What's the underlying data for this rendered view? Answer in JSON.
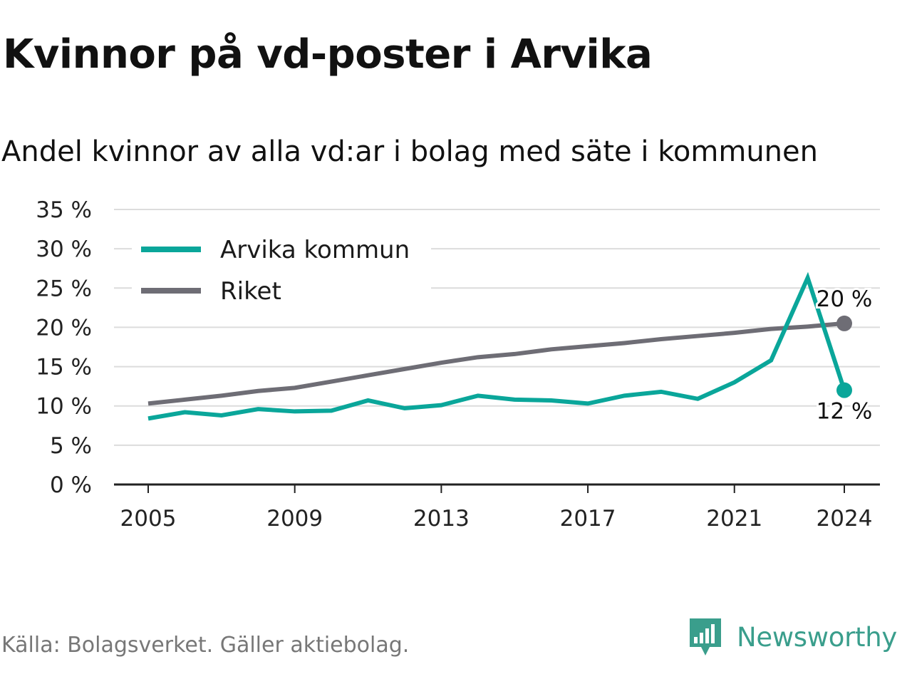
{
  "title": "Kvinnor på vd-poster i Arvika",
  "subtitle": "Andel kvinnor av alla vd:ar i bolag med säte i kommunen",
  "source": "Källa: Bolagsverket. Gäller aktiebolag.",
  "brand": {
    "name": "Newsworthy",
    "icon": "newsworthy-logo-icon",
    "color": "#3a9e8c"
  },
  "chart_data": {
    "type": "line",
    "x": [
      2005,
      2006,
      2007,
      2008,
      2009,
      2010,
      2011,
      2012,
      2013,
      2014,
      2015,
      2016,
      2017,
      2018,
      2019,
      2020,
      2021,
      2022,
      2023,
      2024
    ],
    "x_ticks": [
      2005,
      2009,
      2013,
      2017,
      2021,
      2024
    ],
    "x_tick_labels": [
      "2005",
      "2009",
      "2013",
      "2017",
      "2021",
      "2024"
    ],
    "ylim": [
      0,
      35
    ],
    "y_ticks": [
      0,
      5,
      10,
      15,
      20,
      25,
      30,
      35
    ],
    "y_tick_labels": [
      "0 %",
      "5 %",
      "10 %",
      "15 %",
      "20 %",
      "25 %",
      "30 %",
      "35 %"
    ],
    "grid": true,
    "legend_position": "top-left",
    "series": [
      {
        "name": "Arvika kommun",
        "color": "#0aa69a",
        "values": [
          8.4,
          9.2,
          8.8,
          9.6,
          9.3,
          9.4,
          10.7,
          9.7,
          10.1,
          11.3,
          10.8,
          10.7,
          10.3,
          11.3,
          11.8,
          10.9,
          13.0,
          15.8,
          26.3,
          12.0
        ],
        "end_label": "12 %"
      },
      {
        "name": "Riket",
        "color": "#6e6d75",
        "values": [
          10.3,
          10.8,
          11.3,
          11.9,
          12.3,
          13.1,
          13.9,
          14.7,
          15.5,
          16.2,
          16.6,
          17.2,
          17.6,
          18.0,
          18.5,
          18.9,
          19.3,
          19.8,
          20.1,
          20.5
        ],
        "end_label": "20 %"
      }
    ]
  }
}
